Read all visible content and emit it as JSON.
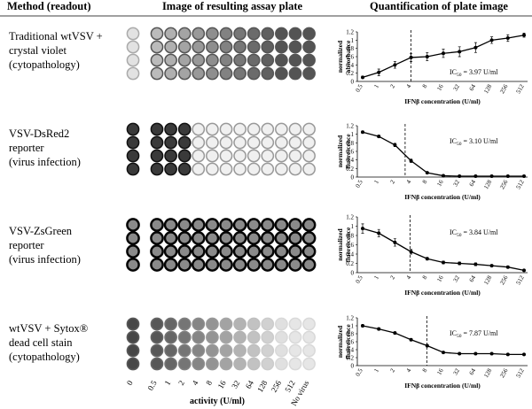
{
  "header": {
    "method": "Method (readout)",
    "image": "Image of resulting assay plate",
    "quant": "Quantification of plate image"
  },
  "rows": [
    {
      "method": [
        "Traditional wtVSV +",
        "crystal violet",
        "(cytopathology)"
      ]
    },
    {
      "method": [
        "VSV-DsRed2",
        "reporter",
        "(virus infection)"
      ]
    },
    {
      "method": [
        "VSV-ZsGreen",
        "reporter",
        "(virus infection)"
      ]
    },
    {
      "method": [
        "wtVSV + Sytox®",
        "dead cell stain",
        "(cytopathology)"
      ]
    }
  ],
  "plate_axis": {
    "labels": [
      "0",
      "0.5",
      "1",
      "2",
      "4",
      "8",
      "16",
      "32",
      "64",
      "128",
      "256",
      "512",
      "No virus"
    ],
    "title": "activity (U/ml)"
  },
  "chart_data": [
    {
      "type": "line",
      "y_label": [
        "normalized",
        "absorbance"
      ],
      "x_label": "IFNβ concentration (U/ml)",
      "categories": [
        "0.5",
        "1",
        "2",
        "4",
        "8",
        "16",
        "32",
        "64",
        "128",
        "256",
        "512"
      ],
      "series": [
        {
          "color": "#000000",
          "values": [
            0.1,
            0.22,
            0.4,
            0.58,
            0.6,
            0.68,
            0.72,
            0.82,
            1.0,
            1.05,
            1.12
          ],
          "errors": [
            0.03,
            0.08,
            0.08,
            0.1,
            0.1,
            0.1,
            0.12,
            0.12,
            0.08,
            0.08,
            0.05
          ]
        }
      ],
      "ylim": [
        0,
        1.2
      ],
      "yticks": [
        0,
        0.2,
        0.4,
        0.6,
        0.8,
        1,
        1.2
      ],
      "ic50_prefix": "IC",
      "ic50_sub": "50",
      "ic50": {
        "value": 3.97,
        "label": "= 3.97 U/ml"
      }
    },
    {
      "type": "line",
      "y_label": [
        "normalized",
        "fluorescence"
      ],
      "x_label": "IFNβ concentration (U/ml)",
      "categories": [
        "0.5",
        "1",
        "2",
        "4",
        "8",
        "16",
        "32",
        "64",
        "128",
        "256",
        "512"
      ],
      "series": [
        {
          "color": "#000000",
          "values": [
            1.05,
            0.95,
            0.75,
            0.38,
            0.1,
            0.03,
            0.02,
            0.02,
            0.02,
            0.02,
            0.02
          ],
          "errors": [
            0.03,
            0.03,
            0.04,
            0.04,
            0.02,
            0.01,
            0.01,
            0.01,
            0.01,
            0.01,
            0.01
          ]
        }
      ],
      "ylim": [
        0,
        1.2
      ],
      "yticks": [
        0,
        0.2,
        0.4,
        0.6,
        0.8,
        1,
        1.2
      ],
      "ic50_prefix": "IC",
      "ic50_sub": "50",
      "ic50": {
        "value": 3.1,
        "label": "= 3.10 U/ml"
      }
    },
    {
      "type": "line",
      "y_label": [
        "normalized",
        "fluorescence"
      ],
      "x_label": "IFNβ concentration (U/ml)",
      "categories": [
        "0.5",
        "1",
        "2",
        "4",
        "8",
        "16",
        "32",
        "64",
        "128",
        "256",
        "512"
      ],
      "series": [
        {
          "color": "#000000",
          "values": [
            0.95,
            0.85,
            0.65,
            0.45,
            0.3,
            0.22,
            0.2,
            0.18,
            0.15,
            0.12,
            0.05
          ],
          "errors": [
            0.1,
            0.08,
            0.08,
            0.05,
            0.03,
            0.03,
            0.03,
            0.03,
            0.02,
            0.02,
            0.02
          ]
        }
      ],
      "ylim": [
        0,
        1.2
      ],
      "yticks": [
        0,
        0.2,
        0.4,
        0.6,
        0.8,
        1,
        1.2
      ],
      "ic50_prefix": "IC",
      "ic50_sub": "50",
      "ic50": {
        "value": 3.84,
        "label": "= 3.84 U/ml"
      }
    },
    {
      "type": "line",
      "y_label": [
        "normalized",
        "fluorescence"
      ],
      "x_label": "IFNβ concentration (U/ml)",
      "categories": [
        "0.5",
        "1",
        "2",
        "4",
        "8",
        "16",
        "32",
        "64",
        "128",
        "256",
        "512"
      ],
      "series": [
        {
          "color": "#000000",
          "values": [
            1.0,
            0.92,
            0.82,
            0.65,
            0.5,
            0.33,
            0.3,
            0.3,
            0.3,
            0.28,
            0.28
          ],
          "errors": [
            0.03,
            0.03,
            0.03,
            0.03,
            0.03,
            0.02,
            0.02,
            0.02,
            0.02,
            0.02,
            0.02
          ]
        }
      ],
      "ylim": [
        0,
        1.2
      ],
      "yticks": [
        0,
        0.2,
        0.4,
        0.6,
        0.8,
        1,
        1.2
      ],
      "ic50_prefix": "IC",
      "ic50_sub": "50",
      "ic50": {
        "value": 7.87,
        "label": "= 7.87 U/ml"
      }
    }
  ]
}
